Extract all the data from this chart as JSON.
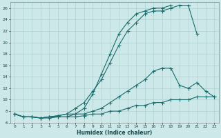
{
  "xlabel": "Humidex (Indice chaleur)",
  "bg_color": "#cce8e8",
  "grid_color": "#b0d0d0",
  "line_color": "#1a6b6b",
  "xlim": [
    -0.5,
    23.5
  ],
  "ylim": [
    6,
    27
  ],
  "xticks": [
    0,
    1,
    2,
    3,
    4,
    5,
    6,
    7,
    8,
    9,
    10,
    11,
    12,
    13,
    14,
    15,
    16,
    17,
    18,
    19,
    20,
    21,
    22,
    23
  ],
  "yticks": [
    6,
    8,
    10,
    12,
    14,
    16,
    18,
    20,
    22,
    24,
    26
  ],
  "curves": [
    {
      "x": [
        0,
        1,
        2,
        3,
        4,
        5,
        6,
        7,
        8,
        9,
        10,
        11,
        12,
        13,
        14,
        15,
        16,
        17,
        18,
        19,
        20,
        21
      ],
      "y": [
        7.5,
        7.0,
        7.0,
        6.8,
        7.0,
        7.2,
        7.5,
        8.5,
        9.5,
        11.5,
        13.5,
        16.5,
        19.5,
        22.0,
        23.5,
        25.0,
        25.5,
        25.5,
        26.0,
        26.5,
        26.5,
        21.5
      ]
    },
    {
      "x": [
        0,
        1,
        2,
        3,
        4,
        5,
        6,
        7,
        8,
        9,
        10,
        11,
        12,
        13,
        14,
        15,
        16,
        17,
        18
      ],
      "y": [
        7.5,
        7.0,
        7.0,
        6.8,
        7.0,
        7.2,
        7.5,
        7.5,
        8.5,
        11.0,
        14.5,
        18.0,
        21.5,
        23.5,
        25.0,
        25.5,
        26.0,
        26.0,
        26.5
      ]
    },
    {
      "x": [
        0,
        1,
        2,
        3,
        4,
        5,
        6,
        7,
        8,
        9,
        10,
        11,
        12,
        13,
        14,
        15,
        16,
        17,
        18,
        19,
        20,
        21,
        22,
        23
      ],
      "y": [
        7.5,
        7.0,
        7.0,
        6.8,
        7.0,
        7.0,
        7.0,
        7.5,
        7.5,
        8.0,
        8.5,
        9.5,
        10.5,
        11.5,
        12.5,
        13.5,
        15.0,
        15.5,
        15.5,
        12.5,
        12.0,
        13.0,
        11.5,
        10.5
      ]
    },
    {
      "x": [
        0,
        1,
        2,
        3,
        4,
        5,
        6,
        7,
        8,
        9,
        10,
        11,
        12,
        13,
        14,
        15,
        16,
        17,
        18,
        19,
        20,
        21,
        22,
        23
      ],
      "y": [
        7.5,
        7.0,
        7.0,
        6.8,
        6.8,
        7.0,
        7.0,
        7.0,
        7.2,
        7.5,
        7.5,
        8.0,
        8.0,
        8.5,
        9.0,
        9.0,
        9.5,
        9.5,
        10.0,
        10.0,
        10.0,
        10.5,
        10.5,
        10.5
      ]
    }
  ]
}
